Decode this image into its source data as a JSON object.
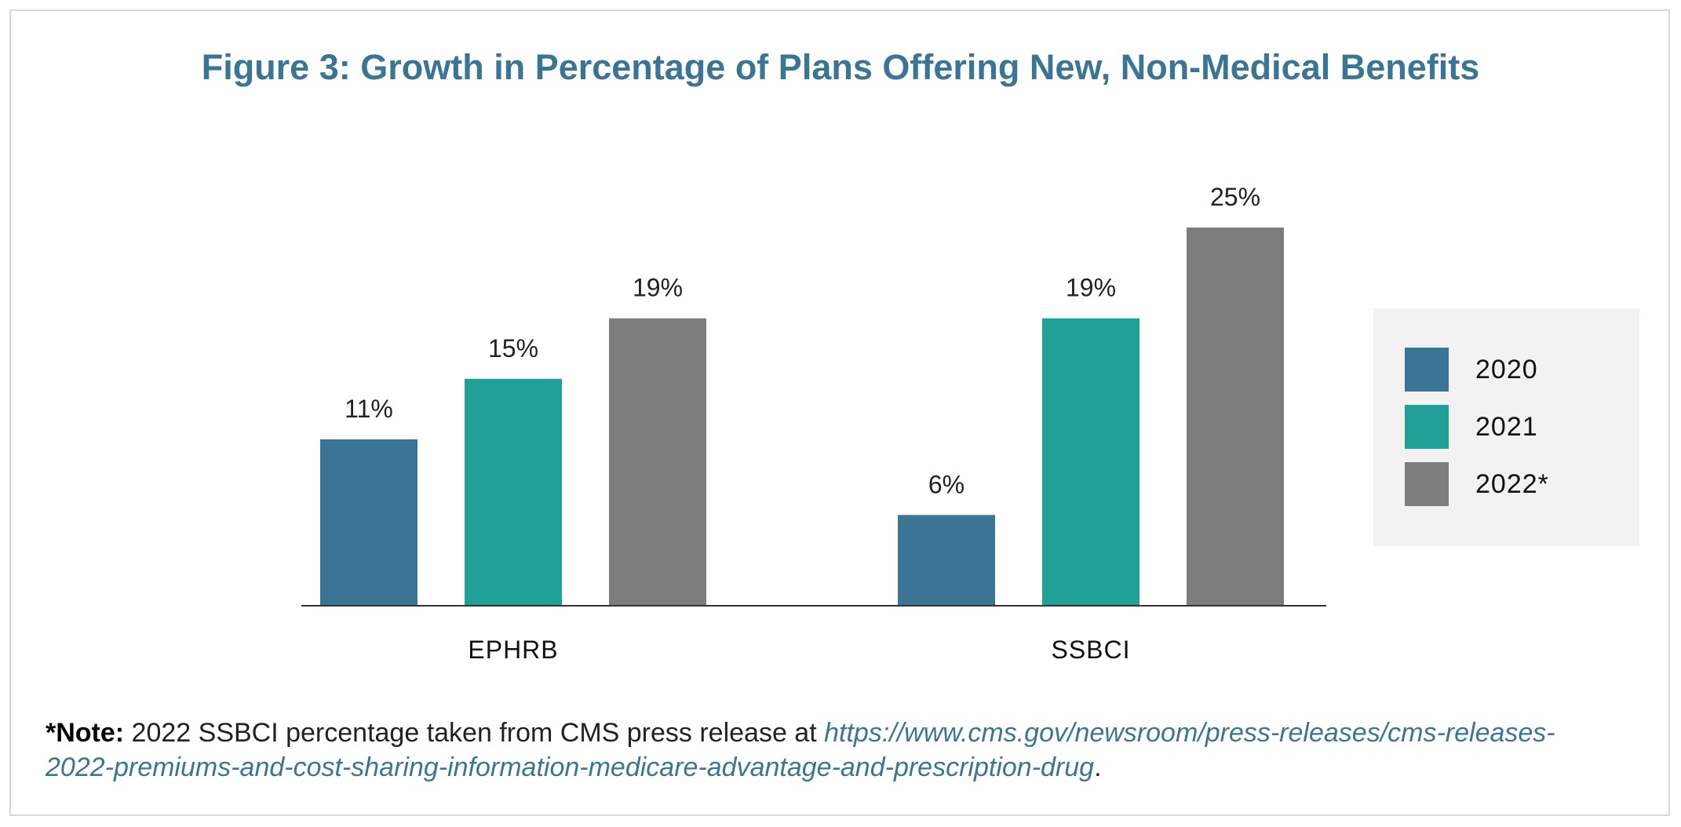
{
  "title": "Figure 3: Growth in Percentage of Plans Offering New, Non-Medical Benefits",
  "chart_data": {
    "type": "bar",
    "categories": [
      "EPHRB",
      "SSBCI"
    ],
    "series": [
      {
        "name": "2020",
        "values": [
          11,
          6
        ],
        "labels": [
          "11%",
          "6%"
        ],
        "color": "#3b7596"
      },
      {
        "name": "2021",
        "values": [
          15,
          19
        ],
        "labels": [
          "15%",
          "19%"
        ],
        "color": "#21a098"
      },
      {
        "name": "2022*",
        "values": [
          19,
          25
        ],
        "labels": [
          "19%",
          "25%"
        ],
        "color": "#7e7d7d"
      }
    ],
    "ylim": [
      0,
      25
    ],
    "grid": false,
    "legend_position": "right",
    "value_unit": "%"
  },
  "legend": {
    "items": [
      {
        "label": "2020",
        "color": "#3b7596"
      },
      {
        "label": "2021",
        "color": "#21a098"
      },
      {
        "label": "2022*",
        "color": "#7e7d7d"
      }
    ]
  },
  "note": {
    "prefix": "*Note:",
    "text": " 2022 SSBCI percentage taken from CMS press release at ",
    "link": "https://www.cms.gov/newsroom/press-releases/cms-releases-2022-premiums-and-cost-sharing-information-medicare-advantage-and-prescription-drug",
    "suffix": "."
  }
}
